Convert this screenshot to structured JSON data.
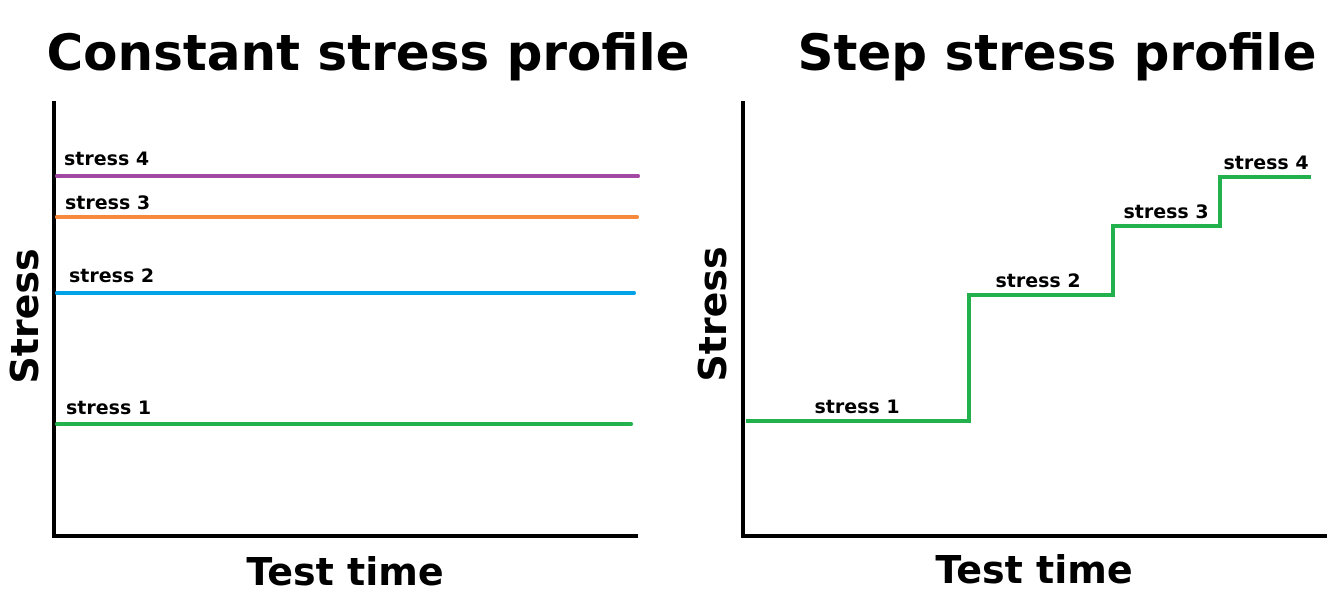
{
  "panels": {
    "constant": {
      "title": "Constant stress profile",
      "ylabel": "Stress",
      "xlabel": "Test time",
      "levels": [
        {
          "label": "stress 1",
          "color": "#22b14c"
        },
        {
          "label": "stress 2",
          "color": "#00a2e8"
        },
        {
          "label": "stress 3",
          "color": "#f7893d"
        },
        {
          "label": "stress 4",
          "color": "#a349a4"
        }
      ]
    },
    "step": {
      "title": "Step stress profile",
      "ylabel": "Stress",
      "xlabel": "Test time",
      "color": "#22b14c",
      "steps": [
        {
          "label": "stress 1"
        },
        {
          "label": "stress 2"
        },
        {
          "label": "stress 3"
        },
        {
          "label": "stress 4"
        }
      ]
    }
  }
}
